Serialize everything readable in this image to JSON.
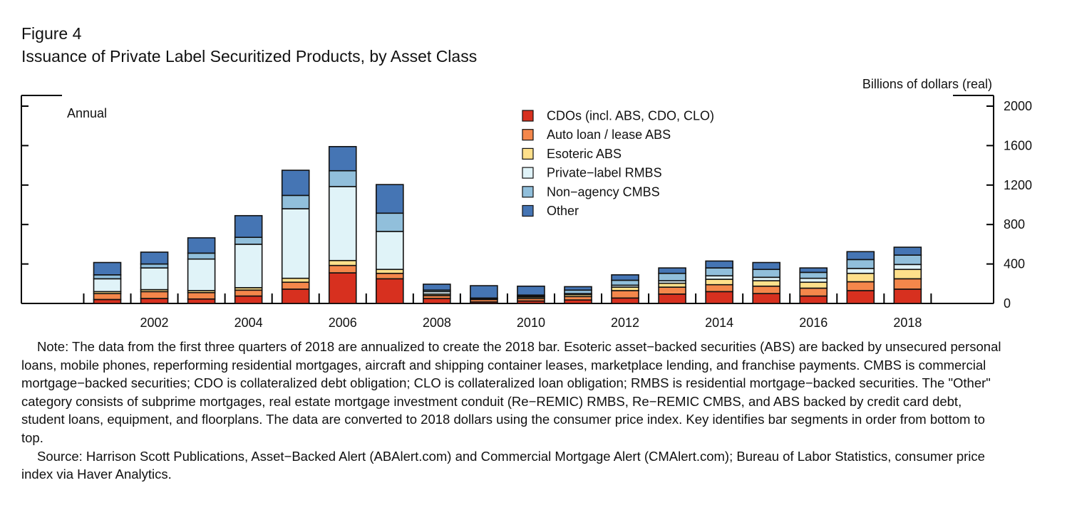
{
  "figure": {
    "label": "Figure 4",
    "title": "Issuance of Private Label Securitized Products, by Asset Class"
  },
  "chart_data": {
    "type": "bar",
    "stacked": true,
    "frequency_label": "Annual",
    "unit_label": "Billions of dollars (real)",
    "ylim": [
      0,
      2000
    ],
    "y_ticks": [
      0,
      400,
      800,
      1200,
      1600,
      2000
    ],
    "x_tick_labels": [
      "2002",
      "2004",
      "2006",
      "2008",
      "2010",
      "2012",
      "2014",
      "2016",
      "2018"
    ],
    "categories": [
      "2001",
      "2002",
      "2003",
      "2004",
      "2005",
      "2006",
      "2007",
      "2008",
      "2009",
      "2010",
      "2011",
      "2012",
      "2013",
      "2014",
      "2015",
      "2016",
      "2017",
      "2018"
    ],
    "series": [
      {
        "name": "CDOs (incl. ABS, CDO, CLO)",
        "color": "#d7301f",
        "values": [
          40,
          50,
          45,
          75,
          145,
          310,
          250,
          50,
          15,
          25,
          35,
          55,
          95,
          120,
          100,
          75,
          130,
          145
        ]
      },
      {
        "name": "Auto loan / lease ABS",
        "color": "#f4874b",
        "values": [
          60,
          70,
          65,
          60,
          70,
          75,
          55,
          30,
          25,
          25,
          35,
          75,
          70,
          70,
          75,
          80,
          90,
          105
        ]
      },
      {
        "name": "Esoteric ABS",
        "color": "#fee08b",
        "values": [
          20,
          20,
          20,
          25,
          40,
          50,
          40,
          15,
          10,
          15,
          20,
          35,
          40,
          55,
          55,
          60,
          85,
          95
        ]
      },
      {
        "name": "Private-label RMBS",
        "color": "#e0f3f8",
        "values": [
          130,
          220,
          320,
          440,
          705,
          750,
          385,
          25,
          5,
          10,
          10,
          20,
          25,
          35,
          35,
          40,
          50,
          50
        ]
      },
      {
        "name": "Non-agency CMBS",
        "color": "#91bfdb",
        "values": [
          40,
          40,
          60,
          70,
          135,
          160,
          185,
          15,
          0,
          10,
          35,
          50,
          75,
          80,
          80,
          60,
          90,
          95
        ]
      },
      {
        "name": "Other",
        "color": "#4575b4",
        "values": [
          125,
          120,
          155,
          220,
          255,
          245,
          290,
          60,
          125,
          90,
          35,
          55,
          55,
          70,
          70,
          45,
          80,
          80
        ]
      }
    ]
  },
  "notes": {
    "note": "Note: The data from the first three quarters of 2018 are annualized to create the 2018 bar. Esoteric asset−backed securities (ABS) are backed by unsecured personal loans, mobile phones, reperforming residential mortgages, aircraft and shipping container leases, marketplace lending, and franchise payments. CMBS is commercial mortgage−backed securities; CDO is collateralized debt obligation; CLO is collateralized loan obligation; RMBS is residential mortgage−backed securities. The \"Other\" category consists of subprime mortgages, real estate mortgage investment conduit (Re−REMIC) RMBS, Re−REMIC CMBS, and ABS backed by credit card debt, student loans, equipment, and floorplans. The data are converted to 2018 dollars using the consumer price index. Key identifies bar segments in order from bottom to top.",
    "source": "Source: Harrison Scott Publications, Asset−Backed Alert (ABAlert.com) and Commercial Mortgage Alert (CMAlert.com); Bureau of Labor Statistics, consumer price index via Haver Analytics."
  }
}
